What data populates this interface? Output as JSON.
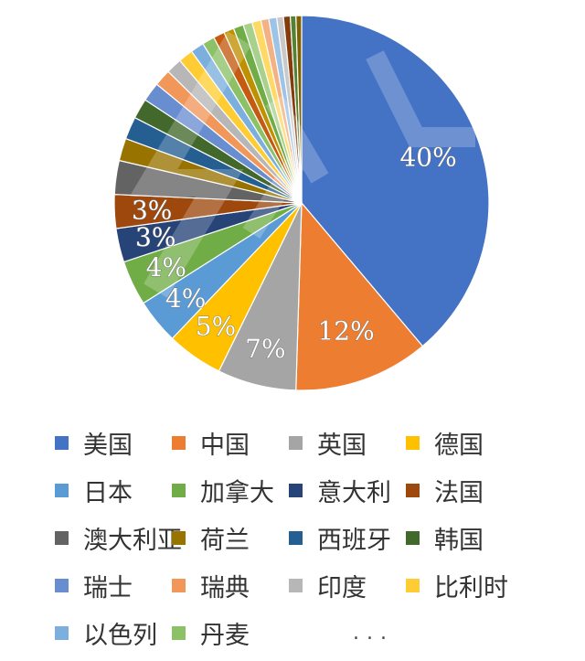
{
  "chart_data": {
    "type": "pie",
    "slices": [
      {
        "name": "美国",
        "value": 40,
        "label": "40%",
        "color": "#4472C4"
      },
      {
        "name": "中国",
        "value": 12,
        "label": "12%",
        "color": "#ED7D31"
      },
      {
        "name": "英国",
        "value": 7,
        "label": "7%",
        "color": "#A5A5A5"
      },
      {
        "name": "德国",
        "value": 5,
        "label": "5%",
        "color": "#FFC000"
      },
      {
        "name": "日本",
        "value": 4,
        "label": "4%",
        "color": "#5B9BD5"
      },
      {
        "name": "加拿大",
        "value": 4,
        "label": "4%",
        "color": "#70AD47"
      },
      {
        "name": "意大利",
        "value": 3,
        "label": "3%",
        "color": "#264478"
      },
      {
        "name": "法国",
        "value": 3,
        "label": "3%",
        "color": "#9E480E"
      },
      {
        "name": "澳大利亚",
        "value": 3,
        "color": "#636363"
      },
      {
        "name": "荷兰",
        "value": 2,
        "color": "#997300"
      },
      {
        "name": "西班牙",
        "value": 2,
        "color": "#255E91"
      },
      {
        "name": "韩国",
        "value": 1.8,
        "color": "#43682B"
      },
      {
        "name": "瑞士",
        "value": 1.7,
        "color": "#698ED0"
      },
      {
        "name": "瑞典",
        "value": 1.5,
        "color": "#F1975A"
      },
      {
        "name": "印度",
        "value": 1.4,
        "color": "#B7B7B7"
      },
      {
        "name": "比利时",
        "value": 1.3,
        "color": "#FFCD33"
      },
      {
        "name": "以色列",
        "value": 1.2,
        "color": "#7CAFDD"
      },
      {
        "name": "丹麦",
        "value": 1.1,
        "color": "#8CC168"
      },
      {
        "name": "",
        "value": 1.0,
        "color": "#C55A11"
      },
      {
        "name": "",
        "value": 0.9,
        "color": "#BF9000"
      },
      {
        "name": "",
        "value": 0.9,
        "color": "#70AD47"
      },
      {
        "name": "",
        "value": 0.8,
        "color": "#A9D18E"
      },
      {
        "name": "",
        "value": 0.8,
        "color": "#FFD966"
      },
      {
        "name": "",
        "value": 0.7,
        "color": "#F4B183"
      },
      {
        "name": "",
        "value": 0.7,
        "color": "#9DC3E6"
      },
      {
        "name": "",
        "value": 0.6,
        "color": "#C9C9C9"
      },
      {
        "name": "",
        "value": 0.6,
        "color": "#843C0C"
      },
      {
        "name": "",
        "value": 0.5,
        "color": "#548235"
      },
      {
        "name": "",
        "value": 0.5,
        "color": "#806000"
      }
    ],
    "legend_more": "..."
  }
}
